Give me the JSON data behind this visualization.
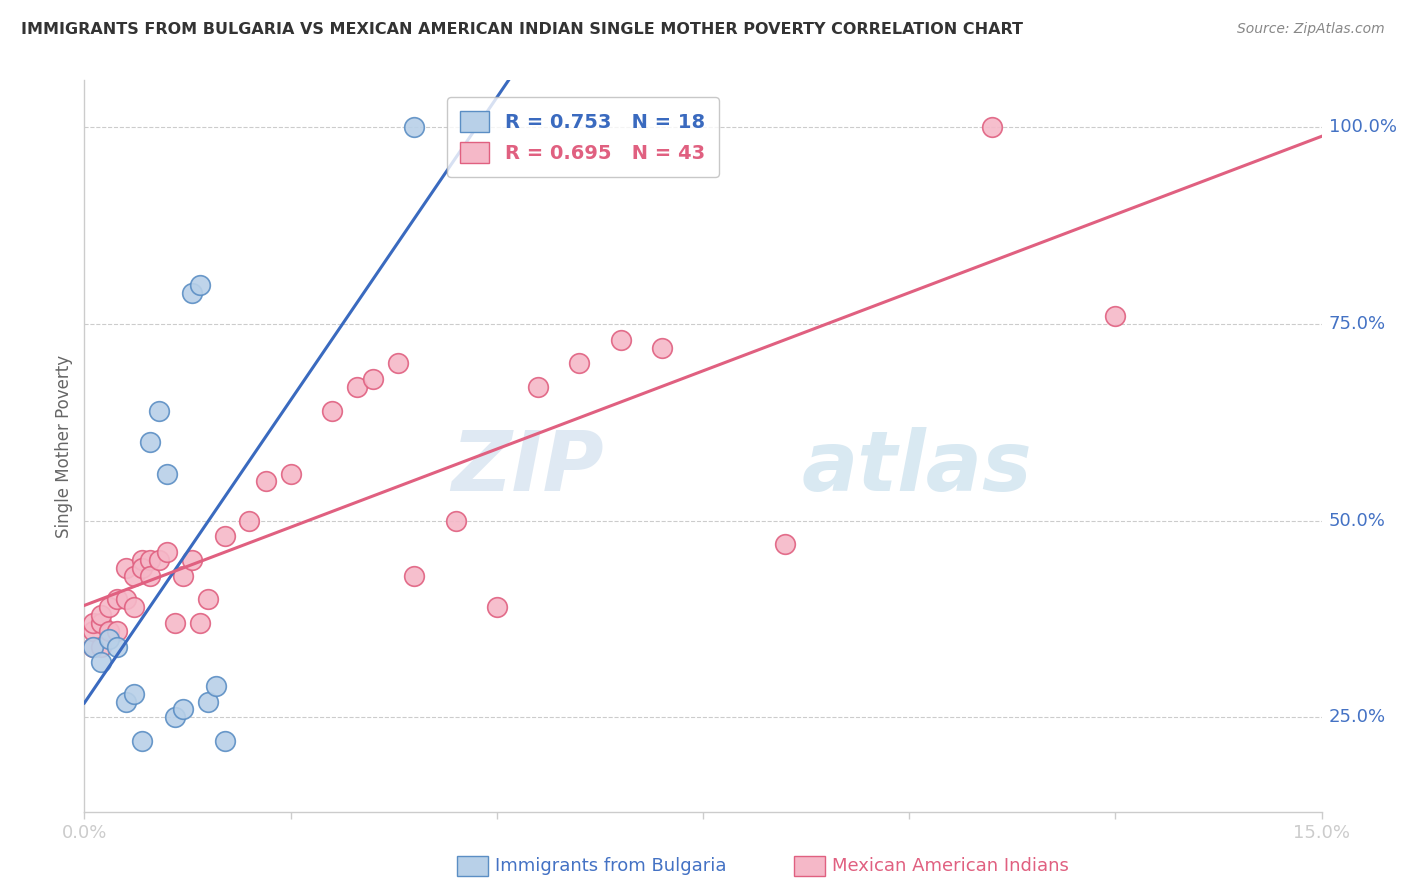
{
  "title": "IMMIGRANTS FROM BULGARIA VS MEXICAN AMERICAN INDIAN SINGLE MOTHER POVERTY CORRELATION CHART",
  "source": "Source: ZipAtlas.com",
  "ylabel": "Single Mother Poverty",
  "xlim": [
    0.0,
    0.15
  ],
  "ylim": [
    0.13,
    1.06
  ],
  "yticks": [
    0.25,
    0.5,
    0.75,
    1.0
  ],
  "ytick_labels": [
    "25.0%",
    "50.0%",
    "75.0%",
    "100.0%"
  ],
  "xticks": [
    0.0,
    0.025,
    0.05,
    0.075,
    0.1,
    0.125,
    0.15
  ],
  "xtick_labels": [
    "0.0%",
    "",
    "",
    "",
    "",
    "",
    "15.0%"
  ],
  "bulgaria_color": "#b8d0e8",
  "bulgaria_edge_color": "#5b8ec4",
  "pink_color": "#f5b8c8",
  "pink_edge_color": "#e06080",
  "blue_line_color": "#3a6abf",
  "pink_line_color": "#e06080",
  "legend_r1": "R = 0.753",
  "legend_n1": "N = 18",
  "legend_r2": "R = 0.695",
  "legend_n2": "N = 43",
  "watermark_text": "ZIPatlas",
  "background_color": "#ffffff",
  "grid_color": "#cccccc",
  "axis_color": "#cccccc",
  "label_color": "#4472c4",
  "title_color": "#333333",
  "bulgaria_x": [
    0.001,
    0.002,
    0.003,
    0.004,
    0.005,
    0.006,
    0.007,
    0.008,
    0.009,
    0.01,
    0.011,
    0.012,
    0.013,
    0.014,
    0.015,
    0.016,
    0.017,
    0.04
  ],
  "bulgaria_y": [
    0.34,
    0.32,
    0.35,
    0.34,
    0.27,
    0.28,
    0.22,
    0.6,
    0.64,
    0.56,
    0.25,
    0.26,
    0.79,
    0.8,
    0.27,
    0.29,
    0.22,
    1.0
  ],
  "pink_x": [
    0.001,
    0.001,
    0.001,
    0.002,
    0.002,
    0.002,
    0.003,
    0.003,
    0.004,
    0.004,
    0.005,
    0.005,
    0.006,
    0.006,
    0.007,
    0.007,
    0.008,
    0.008,
    0.009,
    0.01,
    0.011,
    0.012,
    0.013,
    0.014,
    0.015,
    0.017,
    0.02,
    0.022,
    0.025,
    0.03,
    0.033,
    0.035,
    0.038,
    0.04,
    0.045,
    0.05,
    0.055,
    0.06,
    0.065,
    0.07,
    0.085,
    0.11,
    0.125
  ],
  "pink_y": [
    0.34,
    0.36,
    0.37,
    0.34,
    0.37,
    0.38,
    0.36,
    0.39,
    0.36,
    0.4,
    0.4,
    0.44,
    0.39,
    0.43,
    0.45,
    0.44,
    0.45,
    0.43,
    0.45,
    0.46,
    0.37,
    0.43,
    0.45,
    0.37,
    0.4,
    0.48,
    0.5,
    0.55,
    0.56,
    0.64,
    0.67,
    0.68,
    0.7,
    0.43,
    0.5,
    0.39,
    0.67,
    0.7,
    0.73,
    0.72,
    0.47,
    1.0,
    0.76
  ],
  "blue_line_x": [
    0.0,
    0.15
  ],
  "blue_line_y_intercept": 0.15,
  "blue_line_slope": 6.0,
  "pink_line_x": [
    0.0,
    0.15
  ],
  "pink_line_y_intercept": 0.3,
  "pink_line_slope": 3.0
}
